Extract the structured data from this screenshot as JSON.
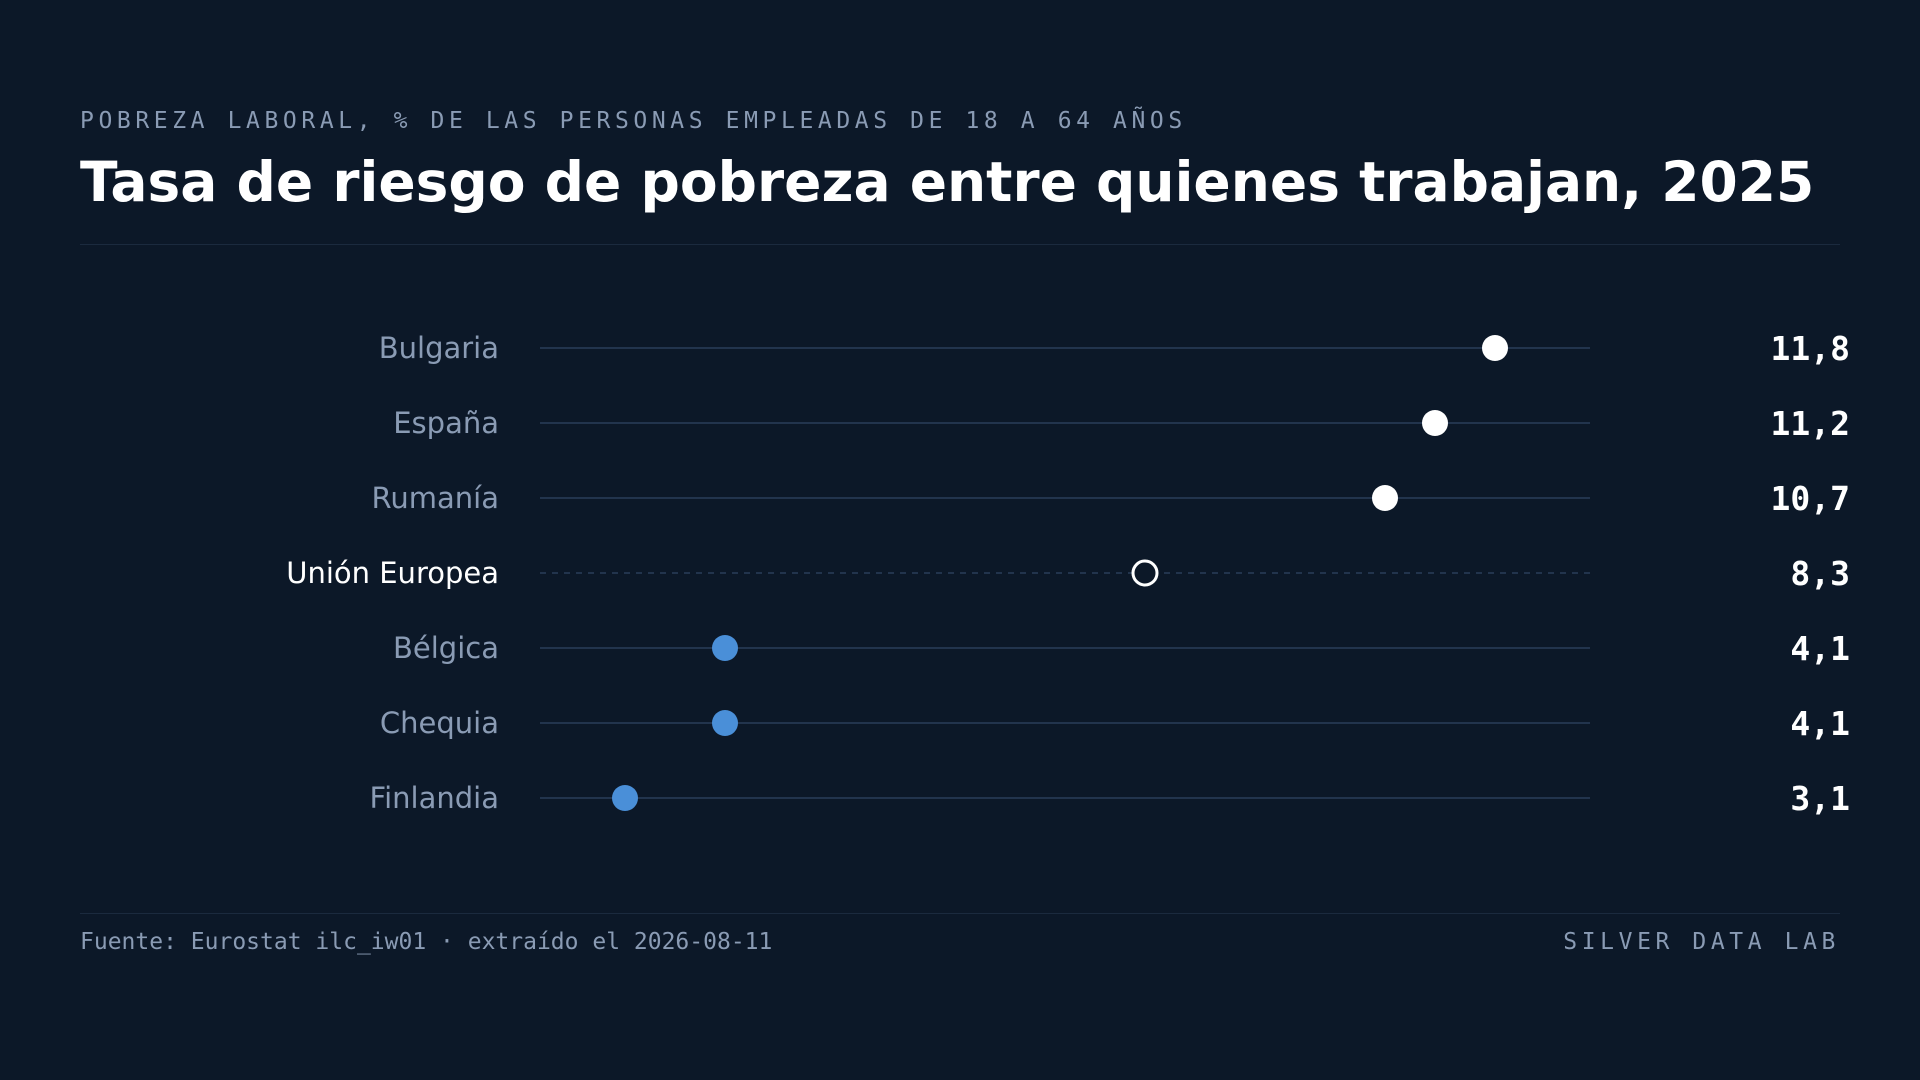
{
  "header": {
    "kicker": "POBREZA LABORAL, % DE LAS PERSONAS EMPLEADAS DE 18 A 64 AÑOS",
    "title": "Tasa de riesgo de pobreza entre quienes trabajan, 2025"
  },
  "footer": {
    "source": "Fuente: Eurostat ilc_iw01 · extraído el 2026-08-11",
    "brand": "SILVER DATA LAB"
  },
  "colors": {
    "background": "#0c1828",
    "high": "#ffffff",
    "low": "#4a8fd8",
    "track": "#22344d",
    "label": "#8a9bb4",
    "highlight_label": "#ffffff"
  },
  "chart_data": {
    "type": "scatter",
    "subtype": "dot-plot",
    "title": "Tasa de riesgo de pobreza entre quienes trabajan, 2025",
    "xlim": [
      2.25,
      12.75
    ],
    "grid": false,
    "categories": [
      "Bulgaria",
      "España",
      "Rumanía",
      "Unión Europea",
      "Bélgica",
      "Chequia",
      "Finlandia"
    ],
    "values": [
      11.8,
      11.2,
      10.7,
      8.3,
      4.1,
      4.1,
      3.1
    ],
    "value_labels": [
      "11,8",
      "11,2",
      "10,7",
      "8,3",
      "4,1",
      "4,1",
      "3,1"
    ],
    "groups": [
      "high",
      "high",
      "high",
      "reference",
      "low",
      "low",
      "low"
    ]
  }
}
